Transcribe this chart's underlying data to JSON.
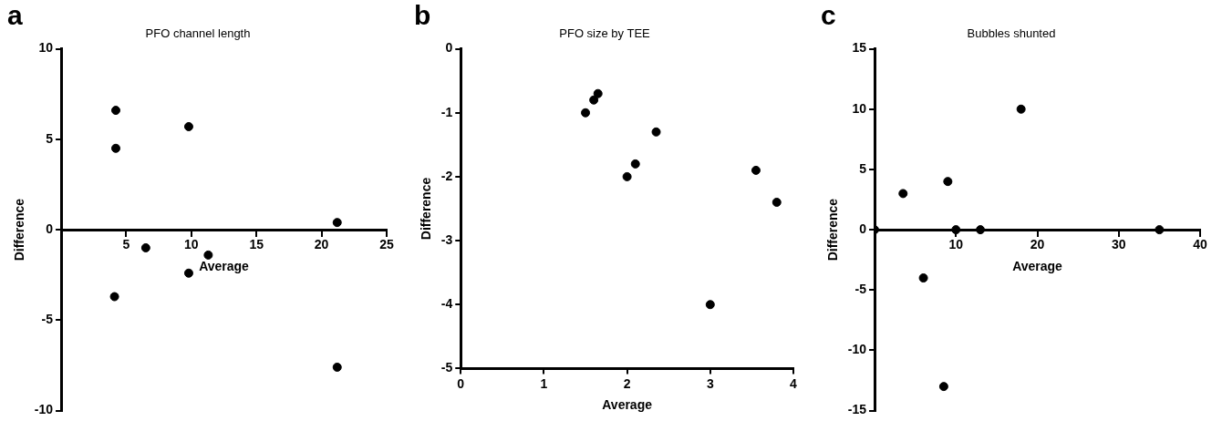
{
  "chart_data": [
    {
      "type": "scatter",
      "title": "PFO channel length",
      "xlabel": "Average",
      "ylabel": "Difference",
      "annotations": [
        "a"
      ],
      "marker": "circle",
      "grid": false,
      "legend": false,
      "x": [
        4.2,
        4.2,
        9.8,
        21.2,
        6.5,
        11.3,
        9.8,
        4.1,
        21.2
      ],
      "series": [
        {
          "color": "#000000",
          "values": [
            6.6,
            4.5,
            5.7,
            0.4,
            -1.0,
            -1.4,
            -2.4,
            -3.7,
            -7.6
          ]
        }
      ],
      "xlim": [
        0,
        25
      ],
      "xticks": [
        5,
        10,
        15,
        20,
        25
      ],
      "ylim": [
        -10,
        10
      ],
      "yticks": [
        -10,
        -5,
        0,
        5,
        10
      ]
    },
    {
      "type": "scatter",
      "title": "PFO size by TEE",
      "xlabel": "Average",
      "ylabel": "Difference",
      "annotations": [
        "b"
      ],
      "marker": "circle",
      "grid": false,
      "legend": false,
      "x": [
        1.5,
        1.6,
        1.65,
        2.0,
        2.1,
        2.35,
        3.0,
        3.55,
        3.8
      ],
      "series": [
        {
          "color": "#000000",
          "values": [
            -1.0,
            -0.8,
            -0.7,
            -2.0,
            -1.8,
            -1.3,
            -4.0,
            -1.9,
            -2.4
          ]
        }
      ],
      "xlim": [
        0,
        4
      ],
      "xticks": [
        0,
        1,
        2,
        3,
        4
      ],
      "ylim": [
        -5,
        0
      ],
      "yticks": [
        -5,
        -4,
        -3,
        -2,
        -1,
        0
      ]
    },
    {
      "type": "scatter",
      "title": "Bubbles shunted",
      "xlabel": "Average",
      "ylabel": "Difference",
      "annotations": [
        "c"
      ],
      "marker": "circle",
      "grid": false,
      "legend": false,
      "x": [
        0,
        3.5,
        6,
        8.5,
        9,
        10,
        13,
        18,
        35
      ],
      "series": [
        {
          "color": "#000000",
          "values": [
            0,
            3,
            -4,
            -13,
            4,
            0,
            0,
            10,
            0
          ]
        }
      ],
      "xlim": [
        0,
        40
      ],
      "xticks": [
        10,
        20,
        30,
        40
      ],
      "ylim": [
        -15,
        15
      ],
      "yticks": [
        -15,
        -10,
        -5,
        0,
        5,
        10,
        15
      ]
    }
  ]
}
